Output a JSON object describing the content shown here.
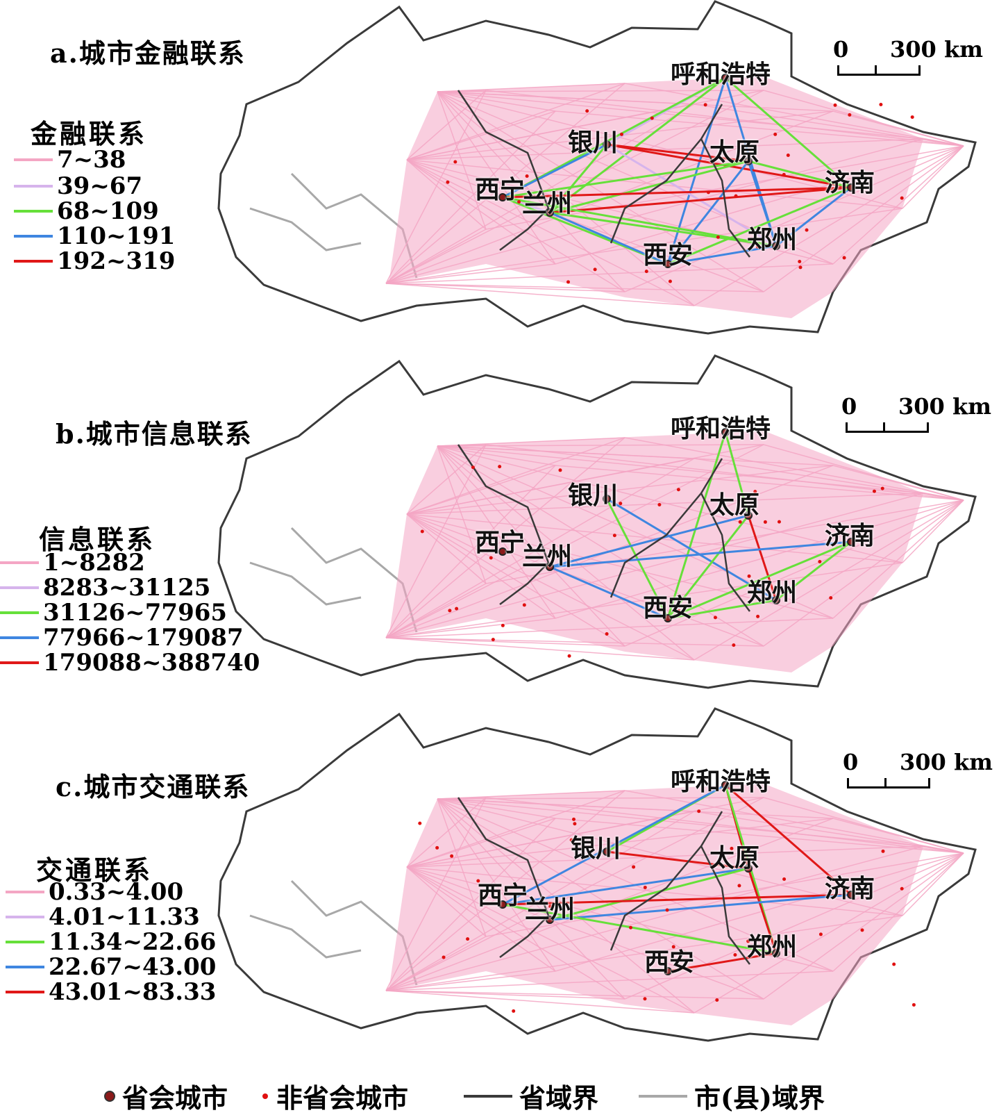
{
  "panels": [
    {
      "title": "a.城市金融联系",
      "legend_title": "金融联系",
      "classes": [
        {
          "label": "7~38",
          "color": "#f4a6c4"
        },
        {
          "label": "39~67",
          "color": "#d6b4ec"
        },
        {
          "label": "68~109",
          "color": "#66e03a"
        },
        {
          "label": "110~191",
          "color": "#3f86e0"
        },
        {
          "label": "192~319",
          "color": "#e01818"
        }
      ],
      "scale": {
        "zero": "0",
        "dist": "300 km"
      }
    },
    {
      "title": "b.城市信息联系",
      "legend_title": "信息联系",
      "classes": [
        {
          "label": "1~8282",
          "color": "#f4a6c4"
        },
        {
          "label": "8283~31125",
          "color": "#d6b4ec"
        },
        {
          "label": "31126~77965",
          "color": "#66e03a"
        },
        {
          "label": "77966~179087",
          "color": "#3f86e0"
        },
        {
          "label": "179088~388740",
          "color": "#e01818"
        }
      ],
      "scale": {
        "zero": "0",
        "dist": "300 km"
      }
    },
    {
      "title": "c.城市交通联系",
      "legend_title": "交通联系",
      "classes": [
        {
          "label": "0.33~4.00",
          "color": "#f4a6c4"
        },
        {
          "label": "4.01~11.33",
          "color": "#d6b4ec"
        },
        {
          "label": "11.34~22.66",
          "color": "#66e03a"
        },
        {
          "label": "22.67~43.00",
          "color": "#3f86e0"
        },
        {
          "label": "43.01~83.33",
          "color": "#e01818"
        }
      ],
      "scale": {
        "zero": "0",
        "dist": "300 km"
      }
    }
  ],
  "cities": {
    "hohhot": "呼和浩特",
    "yinchuan": "银川",
    "taiyuan": "太原",
    "jinan": "济南",
    "xining": "西宁",
    "lanzhou": "兰州",
    "xian": "西安",
    "zhengzhou": "郑州"
  },
  "bottom_legend": {
    "capital": "省会城市",
    "non_capital": "非省会城市",
    "province_border": "省域界",
    "county_border": "市(县)域界"
  },
  "colors": {
    "province_border": "#3a3a3a",
    "county_border": "#a8a8a8",
    "capital_dot": "#8b1a1a",
    "noncapital_dot": "#e01010"
  }
}
